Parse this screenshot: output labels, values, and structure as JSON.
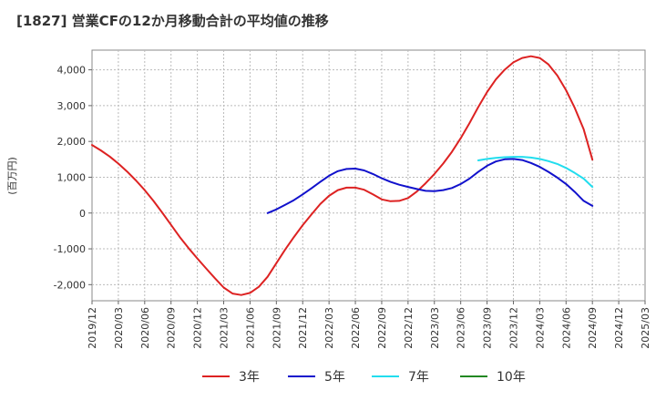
{
  "chart_data": {
    "type": "line",
    "title": "[1827]  営業CFの12か月移動合計の平均値の推移",
    "ylabel": "(百万円)",
    "xlabel": "",
    "ylim": [
      -2450,
      4550
    ],
    "yticks": [
      -2000,
      -1000,
      0,
      1000,
      2000,
      3000,
      4000
    ],
    "ytick_labels": [
      "-2,000",
      "-1,000",
      "0",
      "1,000",
      "2,000",
      "3,000",
      "4,000"
    ],
    "xlim": [
      "2019-12",
      "2025-03"
    ],
    "xtick_labels": [
      "2019/12",
      "2020/03",
      "2020/06",
      "2020/09",
      "2020/12",
      "2021/03",
      "2021/06",
      "2021/09",
      "2021/12",
      "2022/03",
      "2022/06",
      "2022/09",
      "2022/12",
      "2023/03",
      "2023/06",
      "2023/09",
      "2023/12",
      "2024/03",
      "2024/06",
      "2024/09",
      "2024/12",
      "2025/03"
    ],
    "grid": true,
    "legend_position": "bottom",
    "series": [
      {
        "name": "3年",
        "color": "#dd2222",
        "x": [
          "2019-12",
          "2020-01",
          "2020-02",
          "2020-03",
          "2020-04",
          "2020-05",
          "2020-06",
          "2020-07",
          "2020-08",
          "2020-09",
          "2020-10",
          "2020-11",
          "2020-12",
          "2021-01",
          "2021-02",
          "2021-03",
          "2021-04",
          "2021-05",
          "2021-06",
          "2021-07",
          "2021-08",
          "2021-09",
          "2021-10",
          "2021-11",
          "2021-12",
          "2022-01",
          "2022-02",
          "2022-03",
          "2022-04",
          "2022-05",
          "2022-06",
          "2022-07",
          "2022-08",
          "2022-09",
          "2022-10",
          "2022-11",
          "2022-12",
          "2023-01",
          "2023-02",
          "2023-03",
          "2023-04",
          "2023-05",
          "2023-06",
          "2023-07",
          "2023-08",
          "2023-09",
          "2023-10",
          "2023-11",
          "2023-12",
          "2024-01",
          "2024-02",
          "2024-03",
          "2024-04",
          "2024-05",
          "2024-06",
          "2024-07",
          "2024-08",
          "2024-09"
        ],
        "values": [
          1900,
          1750,
          1580,
          1380,
          1160,
          910,
          640,
          340,
          10,
          -330,
          -670,
          -980,
          -1270,
          -1550,
          -1820,
          -2080,
          -2250,
          -2290,
          -2230,
          -2060,
          -1780,
          -1400,
          -1020,
          -670,
          -340,
          -40,
          250,
          480,
          640,
          710,
          710,
          650,
          520,
          380,
          330,
          340,
          420,
          600,
          830,
          1090,
          1380,
          1710,
          2090,
          2510,
          2960,
          3380,
          3730,
          4000,
          4210,
          4330,
          4380,
          4330,
          4150,
          3840,
          3430,
          2930,
          2340,
          1490
        ]
      },
      {
        "name": "5年",
        "color": "#1111cc",
        "x": [
          "2021-08",
          "2021-09",
          "2021-10",
          "2021-11",
          "2021-12",
          "2022-01",
          "2022-02",
          "2022-03",
          "2022-04",
          "2022-05",
          "2022-06",
          "2022-07",
          "2022-08",
          "2022-09",
          "2022-10",
          "2022-11",
          "2022-12",
          "2023-01",
          "2023-02",
          "2023-03",
          "2023-04",
          "2023-05",
          "2023-06",
          "2023-07",
          "2023-08",
          "2023-09",
          "2023-10",
          "2023-11",
          "2023-12",
          "2024-01",
          "2024-02",
          "2024-03",
          "2024-04",
          "2024-05",
          "2024-06",
          "2024-07",
          "2024-08",
          "2024-09"
        ],
        "values": [
          0,
          100,
          230,
          360,
          520,
          690,
          870,
          1040,
          1170,
          1230,
          1240,
          1190,
          1090,
          970,
          870,
          790,
          730,
          670,
          620,
          610,
          640,
          700,
          810,
          960,
          1150,
          1320,
          1440,
          1500,
          1510,
          1480,
          1400,
          1290,
          1150,
          990,
          810,
          590,
          340,
          200
        ]
      },
      {
        "name": "7年",
        "color": "#22ddee",
        "x": [
          "2023-08",
          "2023-09",
          "2023-10",
          "2023-11",
          "2023-12",
          "2024-01",
          "2024-02",
          "2024-03",
          "2024-04",
          "2024-05",
          "2024-06",
          "2024-07",
          "2024-08",
          "2024-09"
        ],
        "values": [
          1470,
          1510,
          1540,
          1560,
          1570,
          1570,
          1550,
          1510,
          1450,
          1370,
          1260,
          1120,
          960,
          730
        ]
      },
      {
        "name": "10年",
        "color": "#228822",
        "x": [],
        "values": []
      }
    ]
  }
}
